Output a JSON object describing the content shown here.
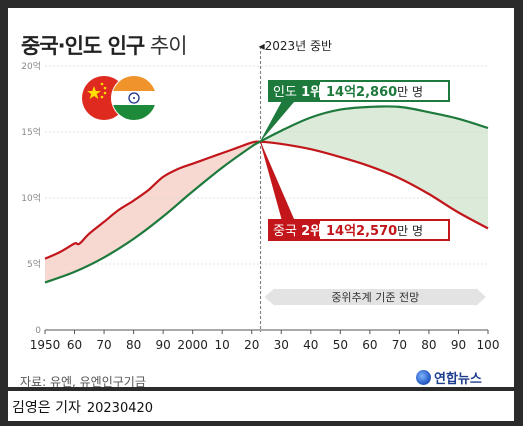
{
  "title": {
    "bold": "중국·인도 인구",
    "light": " 추이"
  },
  "marker_label": "◂2023년 중반",
  "projection_label": "중위추계 기준 전망",
  "india_label": {
    "name": "인도",
    "rank": "1위",
    "value_main": "14억2,860",
    "value_unit": "만 명"
  },
  "china_label": {
    "name": "중국",
    "rank": "2위",
    "value_main": "14억2,570",
    "value_unit": "만 명"
  },
  "source": "자료: 유엔, 유엔인구기금",
  "logo_text": "연합뉴스",
  "caption": {
    "author": "김영은 기자",
    "date": "20230420"
  },
  "colors": {
    "india": "#1e7a3c",
    "china": "#c2161b",
    "india_fill": "#dcead9",
    "china_fill": "#f7d9d2"
  },
  "icons": [
    "china-flag-icon",
    "india-flag-icon"
  ],
  "chart_data": {
    "type": "line",
    "x_tick_labels": [
      "1950",
      "60",
      "70",
      "80",
      "90",
      "2000",
      "10",
      "20",
      "30",
      "40",
      "50",
      "60",
      "70",
      "80",
      "90",
      "100"
    ],
    "x_ticks": [
      1950,
      1960,
      1970,
      1980,
      1990,
      2000,
      2010,
      2020,
      2030,
      2040,
      2050,
      2060,
      2070,
      2080,
      2090,
      2100
    ],
    "y_tick_labels": [
      "0",
      "5억",
      "10억",
      "15억",
      "20억"
    ],
    "y_ticks": [
      0,
      5,
      10,
      15,
      20
    ],
    "ylim": [
      0,
      20
    ],
    "xlim": [
      1950,
      2100
    ],
    "marker_year": 2023,
    "unit": "억",
    "series": [
      {
        "name": "중국",
        "x": [
          1950,
          1955,
          1960,
          1961,
          1962,
          1965,
          1970,
          1975,
          1980,
          1985,
          1990,
          1995,
          2000,
          2005,
          2010,
          2015,
          2020,
          2023,
          2030,
          2040,
          2050,
          2060,
          2070,
          2080,
          2090,
          2100
        ],
        "values": [
          5.4,
          5.9,
          6.55,
          6.5,
          6.6,
          7.3,
          8.2,
          9.1,
          9.8,
          10.6,
          11.6,
          12.2,
          12.6,
          13.0,
          13.4,
          13.8,
          14.2,
          14.26,
          14.1,
          13.7,
          13.1,
          12.4,
          11.5,
          10.3,
          8.9,
          7.7
        ]
      },
      {
        "name": "인도",
        "x": [
          1950,
          1960,
          1970,
          1980,
          1990,
          2000,
          2010,
          2020,
          2023,
          2030,
          2040,
          2050,
          2060,
          2070,
          2080,
          2090,
          2100
        ],
        "values": [
          3.6,
          4.4,
          5.5,
          6.9,
          8.6,
          10.5,
          12.3,
          13.9,
          14.29,
          15.1,
          16.1,
          16.7,
          16.9,
          16.9,
          16.5,
          16.0,
          15.3
        ]
      }
    ]
  }
}
